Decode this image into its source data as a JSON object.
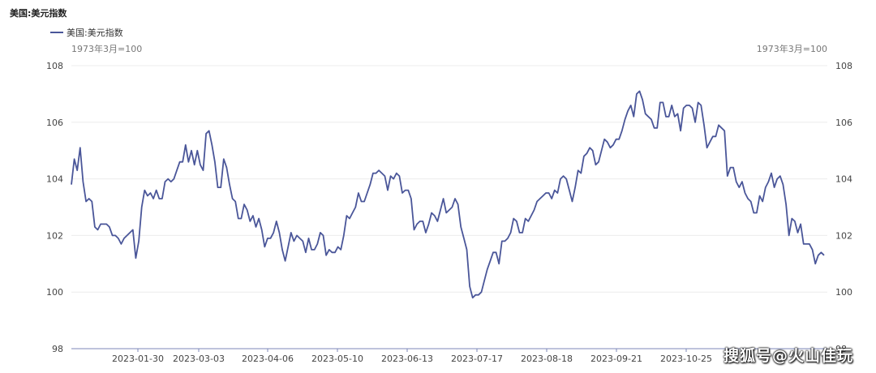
{
  "chart_data": {
    "type": "line",
    "title": "美国:美元指数",
    "unit_left": "1973年3月=100",
    "unit_right": "1973年3月=100",
    "ylim": [
      98,
      108
    ],
    "yticks": [
      98,
      100,
      102,
      104,
      106,
      108
    ],
    "xticks": [
      "2023-01-30",
      "2023-03-03",
      "2023-04-06",
      "2023-05-10",
      "2023-06-13",
      "2023-07-17",
      "2023-08-18",
      "2023-09-21",
      "2023-10-25"
    ],
    "grid": true,
    "legend_position": "top-left",
    "series": [
      {
        "name": "美国:美元指数",
        "color": "#4a5699",
        "values": [
          103.8,
          104.7,
          104.3,
          105.1,
          103.9,
          103.2,
          103.3,
          103.2,
          102.3,
          102.2,
          102.4,
          102.4,
          102.4,
          102.3,
          102.0,
          102.0,
          101.9,
          101.7,
          101.9,
          102.0,
          102.1,
          102.2,
          101.2,
          101.8,
          103.0,
          103.6,
          103.4,
          103.5,
          103.3,
          103.6,
          103.3,
          103.3,
          103.9,
          104.0,
          103.9,
          104.0,
          104.3,
          104.6,
          104.6,
          105.2,
          104.6,
          105.0,
          104.5,
          105.0,
          104.5,
          104.3,
          105.6,
          105.7,
          105.2,
          104.6,
          103.7,
          103.7,
          104.7,
          104.4,
          103.8,
          103.3,
          103.2,
          102.6,
          102.6,
          103.1,
          102.9,
          102.5,
          102.7,
          102.3,
          102.6,
          102.2,
          101.6,
          101.9,
          101.9,
          102.1,
          102.5,
          102.1,
          101.5,
          101.1,
          101.6,
          102.1,
          101.8,
          102.0,
          101.9,
          101.8,
          101.4,
          101.9,
          101.5,
          101.5,
          101.7,
          102.1,
          102.0,
          101.3,
          101.5,
          101.4,
          101.4,
          101.6,
          101.5,
          102.0,
          102.7,
          102.6,
          102.8,
          103.0,
          103.5,
          103.2,
          103.2,
          103.5,
          103.8,
          104.2,
          104.2,
          104.3,
          104.2,
          104.1,
          103.6,
          104.1,
          104.0,
          104.2,
          104.1,
          103.5,
          103.6,
          103.6,
          103.3,
          102.2,
          102.4,
          102.5,
          102.5,
          102.1,
          102.4,
          102.8,
          102.7,
          102.5,
          102.9,
          103.3,
          102.8,
          102.9,
          103.0,
          103.3,
          103.1,
          102.3,
          101.9,
          101.5,
          100.2,
          99.8,
          99.9,
          99.9,
          100.0,
          100.4,
          100.8,
          101.1,
          101.4,
          101.4,
          101.0,
          101.8,
          101.8,
          101.9,
          102.1,
          102.6,
          102.5,
          102.1,
          102.1,
          102.6,
          102.5,
          102.7,
          102.9,
          103.2,
          103.3,
          103.4,
          103.5,
          103.5,
          103.3,
          103.6,
          103.5,
          104.0,
          104.1,
          104.0,
          103.6,
          103.2,
          103.7,
          104.3,
          104.2,
          104.8,
          104.9,
          105.1,
          105.0,
          104.5,
          104.6,
          105.0,
          105.4,
          105.3,
          105.1,
          105.2,
          105.4,
          105.4,
          105.7,
          106.1,
          106.4,
          106.6,
          106.2,
          107.0,
          107.1,
          106.8,
          106.3,
          106.2,
          106.1,
          105.8,
          105.8,
          106.7,
          106.7,
          106.2,
          106.2,
          106.6,
          106.2,
          106.3,
          105.7,
          106.5,
          106.6,
          106.6,
          106.5,
          106.0,
          106.7,
          106.6,
          105.9,
          105.1,
          105.3,
          105.5,
          105.5,
          105.9,
          105.8,
          105.7,
          104.1,
          104.4,
          104.4,
          103.9,
          103.7,
          103.9,
          103.5,
          103.3,
          103.2,
          102.8,
          102.8,
          103.4,
          103.2,
          103.7,
          103.9,
          104.2,
          103.7,
          104.0,
          104.1,
          103.8,
          103.1,
          102.0,
          102.6,
          102.5,
          102.1,
          102.4,
          101.7,
          101.7,
          101.7,
          101.5,
          101.0,
          101.3,
          101.4,
          101.3
        ]
      }
    ],
    "watermark": "搜狐号@火山佳玩",
    "partial_tick": "98"
  }
}
